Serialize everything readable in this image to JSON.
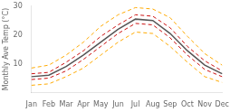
{
  "chart_data": {
    "type": "line",
    "categories": [
      "Jan",
      "Feb",
      "Mar",
      "Apr",
      "May",
      "Jun",
      "Jul",
      "Aug",
      "Sep",
      "Oct",
      "Nov",
      "Dec"
    ],
    "series": [
      {
        "color": "#ffaa00",
        "line_style": "dashed",
        "values": [
          2.5,
          3.0,
          5.5,
          8.5,
          13.0,
          17.5,
          21.0,
          20.5,
          16.0,
          10.5,
          5.5,
          3.5
        ]
      },
      {
        "color": "#ffaa00",
        "line_style": "dashed",
        "values": [
          8.5,
          9.5,
          13.0,
          17.5,
          23.0,
          27.0,
          29.5,
          29.0,
          26.0,
          19.5,
          13.5,
          9.5
        ]
      },
      {
        "color": "#cc1111",
        "line_style": "dashed",
        "values": [
          4.5,
          5.0,
          7.5,
          11.5,
          16.0,
          20.5,
          24.0,
          23.5,
          19.0,
          13.0,
          8.0,
          5.5
        ]
      },
      {
        "color": "#cc1111",
        "line_style": "dashed",
        "values": [
          6.5,
          7.0,
          10.5,
          14.5,
          19.5,
          23.5,
          27.0,
          26.5,
          22.5,
          16.0,
          11.0,
          7.5
        ]
      },
      {
        "color": "#555555",
        "line_style": "solid",
        "values": [
          5.5,
          6.0,
          9.0,
          13.0,
          17.5,
          22.0,
          25.5,
          25.0,
          20.5,
          14.5,
          9.5,
          6.5
        ]
      }
    ],
    "ylabel": "Monthly Ave Temp (°C)",
    "ylim": [
      0,
      30
    ],
    "yticks": [
      10,
      20,
      30
    ],
    "grid": false
  }
}
